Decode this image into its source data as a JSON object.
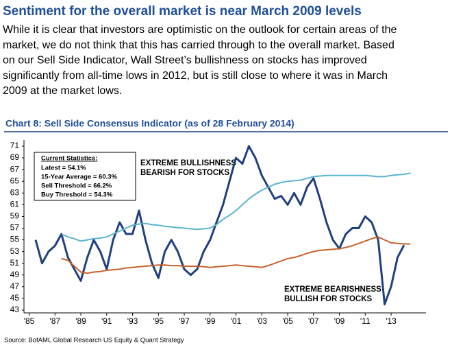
{
  "heading": "Sentiment for the overall market is near March 2009 levels",
  "paragraph": [
    "While it is clear that investors are optimistic on the outlook for certain areas of the",
    "market, we do not think that this has carried through to the overall market. Based",
    "on our Sell Side Indicator, Wall Street’s bullishness on stocks has improved",
    "significantly from all-time lows in 2012, but is still close to where it was in March",
    "2009 at the market lows."
  ],
  "chart_data": {
    "type": "line",
    "title": "Chart 8: Sell Side Consensus Indicator (as of 28 February 2014)",
    "stats_box": {
      "title": "Current Statistics:",
      "lines": [
        "Latest = 54.1%",
        "15-Year Average = 60.3%",
        "Sell Threshold = 66.2%",
        "Buy Threshold = 54.3%"
      ]
    },
    "annotations": [
      [
        "EXTREME BULLISHNESS",
        "BEARISH FOR STOCKS"
      ],
      [
        "EXTREME BEARISHNESS",
        "BULLISH FOR STOCKS"
      ]
    ],
    "x": [
      1985.5,
      1986,
      1986.5,
      1987,
      1987.5,
      1988,
      1988.5,
      1989,
      1989.5,
      1990,
      1990.5,
      1991,
      1991.5,
      1992,
      1992.5,
      1993,
      1993.5,
      1994,
      1994.5,
      1995,
      1995.5,
      1996,
      1996.5,
      1997,
      1997.5,
      1998,
      1998.5,
      1999,
      1999.5,
      2000,
      2000.5,
      2001,
      2001.5,
      2002,
      2002.5,
      2003,
      2003.5,
      2004,
      2004.5,
      2005,
      2005.5,
      2006,
      2006.5,
      2007,
      2007.5,
      2008,
      2008.5,
      2009,
      2009.5,
      2010,
      2010.5,
      2011,
      2011.5,
      2012,
      2012.5,
      2013,
      2013.5,
      2014,
      2014.5
    ],
    "series": [
      {
        "color": "#1f3f7f",
        "width": 3,
        "values": [
          55,
          51,
          53,
          54,
          56,
          52,
          50,
          48,
          52,
          55,
          53,
          50,
          55,
          58,
          56,
          56,
          60,
          55,
          51,
          48.5,
          53,
          55,
          53,
          50,
          49,
          50,
          53,
          55,
          58,
          61,
          65,
          69,
          68,
          71,
          69,
          66,
          64,
          62,
          62.5,
          61,
          63,
          61,
          64,
          65.5,
          62,
          58,
          55,
          53.5,
          56,
          57,
          57,
          59,
          58,
          55,
          44,
          47,
          52,
          54.1,
          null
        ]
      },
      {
        "color": "#5ab4d0",
        "width": 2,
        "values": [
          null,
          null,
          null,
          null,
          56,
          55.5,
          55.2,
          54.8,
          55,
          55.2,
          55.3,
          55.5,
          56,
          56.5,
          57,
          57.5,
          57.7,
          57.8,
          57.6,
          57.5,
          57.3,
          57.2,
          57.1,
          57,
          56.9,
          56.8,
          56.9,
          57,
          57.6,
          58.5,
          59.2,
          60,
          61,
          62,
          62.8,
          63.5,
          64,
          64.5,
          64.8,
          65,
          65.1,
          65.2,
          65.5,
          65.8,
          65.9,
          66,
          66,
          66,
          66,
          66,
          66,
          66,
          65.9,
          65.8,
          65.8,
          66,
          66.1,
          66.2,
          66.4
        ]
      },
      {
        "color": "#c8602c",
        "width": 2,
        "values": [
          null,
          null,
          null,
          null,
          51.8,
          51.5,
          50.5,
          49.5,
          49.3,
          49.5,
          49.6,
          49.8,
          49.9,
          50,
          50.2,
          50.3,
          50.4,
          50.5,
          50.6,
          50.7,
          50.7,
          50.6,
          50.6,
          50.5,
          50.5,
          50.5,
          50.4,
          50.3,
          50.4,
          50.5,
          50.6,
          50.7,
          50.6,
          50.5,
          50.4,
          50.3,
          50.6,
          51,
          51.4,
          51.8,
          52,
          52.3,
          52.7,
          53,
          53.2,
          53.3,
          53.4,
          53.5,
          53.7,
          54,
          54.4,
          54.8,
          55.2,
          55.5,
          55,
          54.5,
          54.4,
          54.3,
          54.3
        ]
      }
    ],
    "xlim": [
      1984.6,
      2015.7
    ],
    "xticks": [
      {
        "value": 1985,
        "label": "'85"
      },
      {
        "value": 1987,
        "label": "'87"
      },
      {
        "value": 1989,
        "label": "'89"
      },
      {
        "value": 1991,
        "label": "'91"
      },
      {
        "value": 1993,
        "label": "'93"
      },
      {
        "value": 1995,
        "label": "'95"
      },
      {
        "value": 1997,
        "label": "'97"
      },
      {
        "value": 1999,
        "label": "'99"
      },
      {
        "value": 2001,
        "label": "'01"
      },
      {
        "value": 2003,
        "label": "'03"
      },
      {
        "value": 2005,
        "label": "'05"
      },
      {
        "value": 2007,
        "label": "'07"
      },
      {
        "value": 2009,
        "label": "'09"
      },
      {
        "value": 2011,
        "label": "'11"
      },
      {
        "value": 2013,
        "label": "'13"
      }
    ],
    "ylim": [
      43,
      71
    ],
    "yticks": [
      43,
      45,
      47,
      49,
      51,
      53,
      55,
      57,
      59,
      61,
      63,
      65,
      67,
      69,
      71
    ]
  },
  "source": "Source: BofAML Global Research US Equity & Quant Strategy"
}
